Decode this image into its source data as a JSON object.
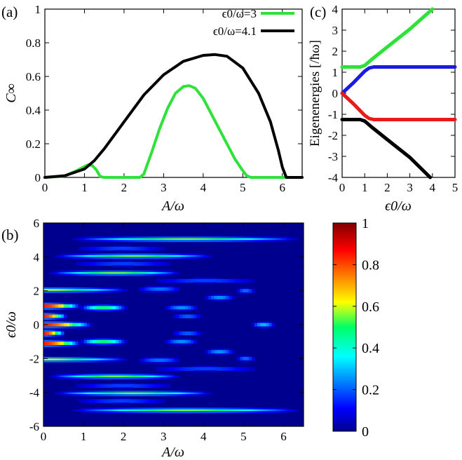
{
  "figure": {
    "panel_labels": [
      "(a)",
      "(b)",
      "(c)"
    ]
  },
  "chart_data": [
    {
      "panel": "(a)",
      "type": "line",
      "xlabel": "A/ω",
      "ylabel": "C∞",
      "xlim": [
        0,
        6.5
      ],
      "ylim": [
        0,
        1
      ],
      "xticks": [
        0,
        1,
        2,
        3,
        4,
        5,
        6
      ],
      "yticks": [
        0,
        0.2,
        0.4,
        0.6,
        0.8,
        1
      ],
      "ytick_labels": [
        "0",
        "0.2",
        "0.4",
        "0.6",
        "0.8",
        "1"
      ],
      "legend_position": "top-right",
      "series": [
        {
          "name": "ϵ0/ω=3",
          "color": "#2fe23a",
          "x": [
            0,
            0.5,
            0.8,
            1.0,
            1.1,
            1.2,
            1.3,
            1.4,
            1.5,
            2.4,
            2.5,
            2.7,
            2.9,
            3.1,
            3.3,
            3.5,
            3.65,
            3.8,
            4.0,
            4.2,
            4.4,
            4.6,
            4.8,
            5.0,
            5.1,
            5.2,
            6.5
          ],
          "y": [
            0,
            0.008,
            0.04,
            0.065,
            0.075,
            0.07,
            0.045,
            0.005,
            0,
            0,
            0.02,
            0.15,
            0.29,
            0.41,
            0.5,
            0.54,
            0.545,
            0.53,
            0.47,
            0.38,
            0.29,
            0.2,
            0.11,
            0.04,
            0.01,
            0,
            0
          ]
        },
        {
          "name": "ϵ0/ω=4.1",
          "color": "#000000",
          "x": [
            0,
            0.5,
            1.0,
            1.25,
            1.5,
            2.0,
            2.5,
            3.0,
            3.5,
            4.0,
            4.3,
            4.6,
            5.0,
            5.4,
            5.7,
            5.9,
            6.0,
            6.1,
            6.5
          ],
          "y": [
            0,
            0.01,
            0.05,
            0.1,
            0.17,
            0.33,
            0.49,
            0.61,
            0.69,
            0.725,
            0.73,
            0.72,
            0.65,
            0.5,
            0.33,
            0.16,
            0.06,
            0,
            0
          ]
        }
      ]
    },
    {
      "panel": "(b)",
      "type": "heatmap",
      "xlabel": "A/ω",
      "ylabel": "ϵ0/ω",
      "xlim": [
        0,
        6.5
      ],
      "ylim": [
        -6,
        6
      ],
      "xticks": [
        0,
        1,
        2,
        3,
        4,
        5,
        6
      ],
      "yticks": [
        -6,
        -4,
        -2,
        0,
        2,
        4,
        6
      ],
      "colorbar": {
        "range": [
          0,
          1
        ],
        "ticks": [
          0,
          0.2,
          0.4,
          0.6,
          0.8,
          1
        ],
        "tick_labels": [
          "0",
          "0.2",
          "0.4",
          "0.6",
          "0.8",
          "1"
        ],
        "colormap": "jet"
      },
      "features": [
        {
          "eps": 1.1,
          "amp": 1.0,
          "x_start": 0.0,
          "x_end": 0.95,
          "width": 0.12
        },
        {
          "eps": 0.5,
          "amp": 1.0,
          "x_start": 0.0,
          "x_end": 0.6,
          "width": 0.12
        },
        {
          "eps": 0.0,
          "amp": 1.0,
          "x_start": 0.0,
          "x_end": 1.25,
          "width": 0.12
        },
        {
          "eps": -0.5,
          "amp": 1.0,
          "x_start": 0.0,
          "x_end": 0.55,
          "width": 0.12
        },
        {
          "eps": -1.1,
          "amp": 1.0,
          "x_start": 0.0,
          "x_end": 0.95,
          "width": 0.12
        },
        {
          "eps": 1.0,
          "amp": 0.55,
          "x_start": 0.9,
          "x_end": 2.1,
          "width": 0.13
        },
        {
          "eps": -1.0,
          "amp": 0.55,
          "x_start": 0.9,
          "x_end": 2.1,
          "width": 0.13
        },
        {
          "eps": 2.05,
          "amp": 0.6,
          "x_start": 0.0,
          "x_end": 2.2,
          "width": 0.1
        },
        {
          "eps": -2.05,
          "amp": 0.6,
          "x_start": 0.0,
          "x_end": 2.2,
          "width": 0.1
        },
        {
          "eps": 2.1,
          "amp": 0.25,
          "x_start": 2.3,
          "x_end": 3.5,
          "width": 0.13
        },
        {
          "eps": -2.1,
          "amp": 0.25,
          "x_start": 2.3,
          "x_end": 3.5,
          "width": 0.13
        },
        {
          "eps": 3.05,
          "amp": 0.55,
          "x_start": 0.1,
          "x_end": 3.5,
          "width": 0.1
        },
        {
          "eps": -3.05,
          "amp": 0.55,
          "x_start": 0.1,
          "x_end": 3.5,
          "width": 0.1
        },
        {
          "eps": 3.6,
          "amp": 0.2,
          "x_start": 0.6,
          "x_end": 3.4,
          "width": 0.12
        },
        {
          "eps": -3.6,
          "amp": 0.2,
          "x_start": 0.6,
          "x_end": 3.4,
          "width": 0.12
        },
        {
          "eps": 4.05,
          "amp": 0.55,
          "x_start": 0.2,
          "x_end": 4.3,
          "width": 0.1
        },
        {
          "eps": -4.05,
          "amp": 0.55,
          "x_start": 0.2,
          "x_end": 4.3,
          "width": 0.1
        },
        {
          "eps": 5.05,
          "amp": 0.55,
          "x_start": 0.6,
          "x_end": 6.5,
          "width": 0.1
        },
        {
          "eps": -5.05,
          "amp": 0.55,
          "x_start": 0.6,
          "x_end": 6.5,
          "width": 0.1
        },
        {
          "eps": 4.5,
          "amp": 0.2,
          "x_start": 0.7,
          "x_end": 3.2,
          "width": 0.12
        },
        {
          "eps": -4.5,
          "amp": 0.2,
          "x_start": 0.7,
          "x_end": 3.2,
          "width": 0.12
        },
        {
          "eps": 2.6,
          "amp": 0.2,
          "x_start": 2.6,
          "x_end": 5.5,
          "width": 0.12
        },
        {
          "eps": -2.6,
          "amp": 0.2,
          "x_start": 2.6,
          "x_end": 5.5,
          "width": 0.12
        },
        {
          "eps": 1.6,
          "amp": 0.3,
          "x_start": 4.0,
          "x_end": 4.8,
          "width": 0.12
        },
        {
          "eps": -1.6,
          "amp": 0.3,
          "x_start": 4.0,
          "x_end": 4.8,
          "width": 0.12
        },
        {
          "eps": 0.0,
          "amp": 0.35,
          "x_start": 5.2,
          "x_end": 5.8,
          "width": 0.12
        },
        {
          "eps": 1.0,
          "amp": 0.3,
          "x_start": 3.0,
          "x_end": 3.9,
          "width": 0.12
        },
        {
          "eps": -1.0,
          "amp": 0.3,
          "x_start": 3.0,
          "x_end": 3.9,
          "width": 0.12
        },
        {
          "eps": 0.5,
          "amp": 0.25,
          "x_start": 3.2,
          "x_end": 4.0,
          "width": 0.1
        },
        {
          "eps": -0.5,
          "amp": 0.25,
          "x_start": 3.2,
          "x_end": 4.0,
          "width": 0.1
        },
        {
          "eps": 2.0,
          "amp": 0.25,
          "x_start": 4.8,
          "x_end": 5.3,
          "width": 0.12
        },
        {
          "eps": -2.0,
          "amp": 0.25,
          "x_start": 4.8,
          "x_end": 5.3,
          "width": 0.12
        }
      ]
    },
    {
      "panel": "(c)",
      "type": "line",
      "xlabel": "ϵ0/ω",
      "ylabel": "Eigenenergies [/ħω]",
      "xlim": [
        0,
        5
      ],
      "ylim": [
        -4,
        4
      ],
      "xticks": [
        0,
        1,
        2,
        3,
        4,
        5
      ],
      "yticks": [
        -4,
        -3,
        -2,
        -1,
        0,
        1,
        2,
        3,
        4
      ],
      "series": [
        {
          "name": "green",
          "color": "#2fe23a",
          "x": [
            0,
            0.8,
            1.0,
            1.3,
            2.0,
            3.0,
            4.0
          ],
          "y": [
            1.25,
            1.25,
            1.32,
            1.6,
            2.2,
            3.05,
            4.0
          ]
        },
        {
          "name": "blue",
          "color": "#1a1ae0",
          "x": [
            0,
            0.5,
            1.0,
            1.2,
            1.4,
            2.0,
            5.0
          ],
          "y": [
            0,
            0.5,
            1.05,
            1.2,
            1.25,
            1.25,
            1.25
          ]
        },
        {
          "name": "red",
          "color": "#e81a1a",
          "x": [
            0,
            0.5,
            1.0,
            1.2,
            1.4,
            2.0,
            5.0
          ],
          "y": [
            0,
            -0.5,
            -1.05,
            -1.2,
            -1.25,
            -1.25,
            -1.25
          ]
        },
        {
          "name": "black",
          "color": "#000000",
          "x": [
            0,
            0.8,
            1.0,
            1.3,
            2.0,
            3.0,
            3.9
          ],
          "y": [
            -1.25,
            -1.25,
            -1.32,
            -1.6,
            -2.2,
            -3.05,
            -4.0
          ]
        }
      ]
    }
  ]
}
